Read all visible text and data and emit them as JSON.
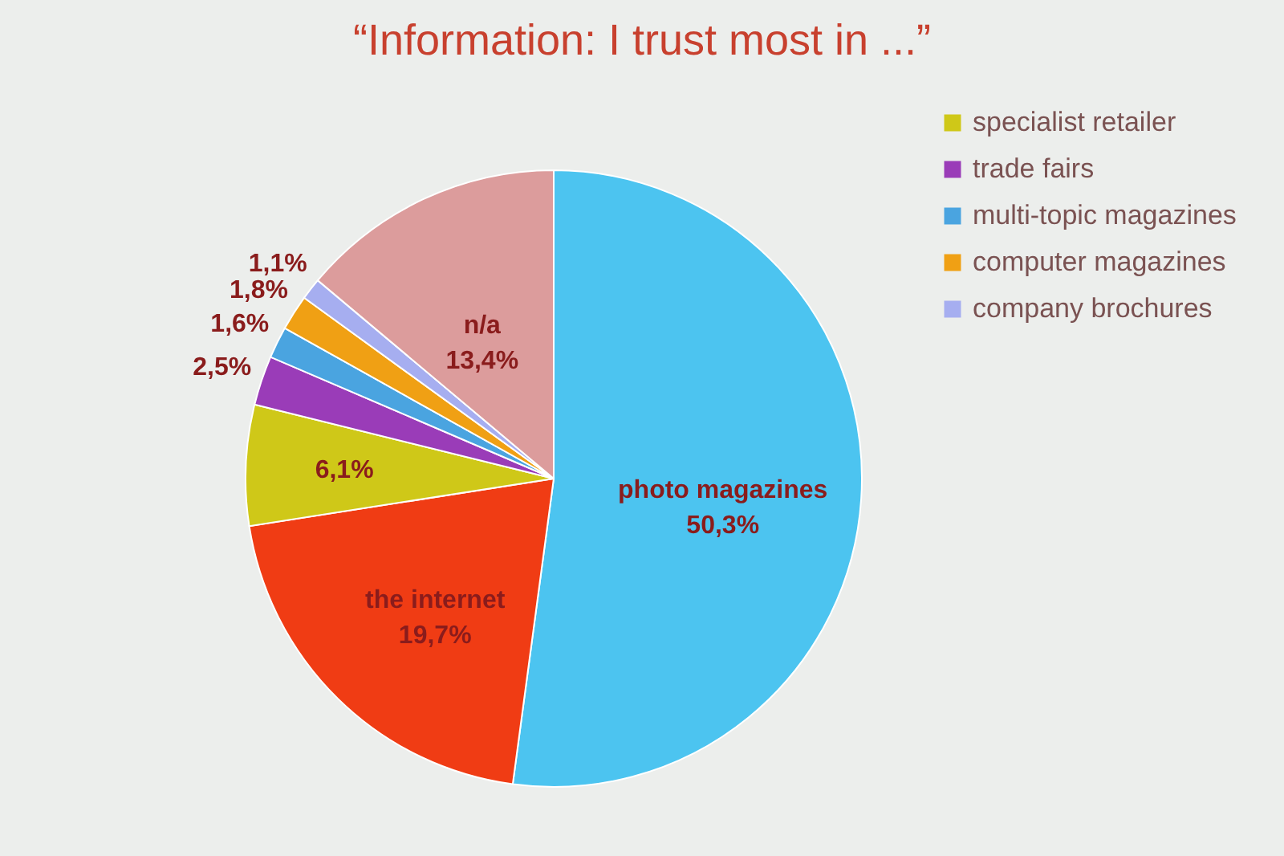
{
  "chart_data": {
    "type": "pie",
    "title": "“Information: I trust most in ...”",
    "categories": [
      "photo magazines",
      "the internet",
      "specialist retailer",
      "trade fairs",
      "multi-topic magazines",
      "computer magazines",
      "company brochures",
      "n/a"
    ],
    "values": [
      50.3,
      19.7,
      6.1,
      2.5,
      1.6,
      1.8,
      1.1,
      13.4
    ],
    "colors": [
      "#4cc4f0",
      "#f03c14",
      "#cfc818",
      "#9a3cb8",
      "#4aa4e0",
      "#f0a014",
      "#a6aef0",
      "#dc9c9c"
    ],
    "value_labels": [
      "50,3%",
      "19,7%",
      "6,1%",
      "2,5%",
      "1,6%",
      "1,8%",
      "1,1%",
      "13,4%"
    ],
    "legend": "top right"
  }
}
